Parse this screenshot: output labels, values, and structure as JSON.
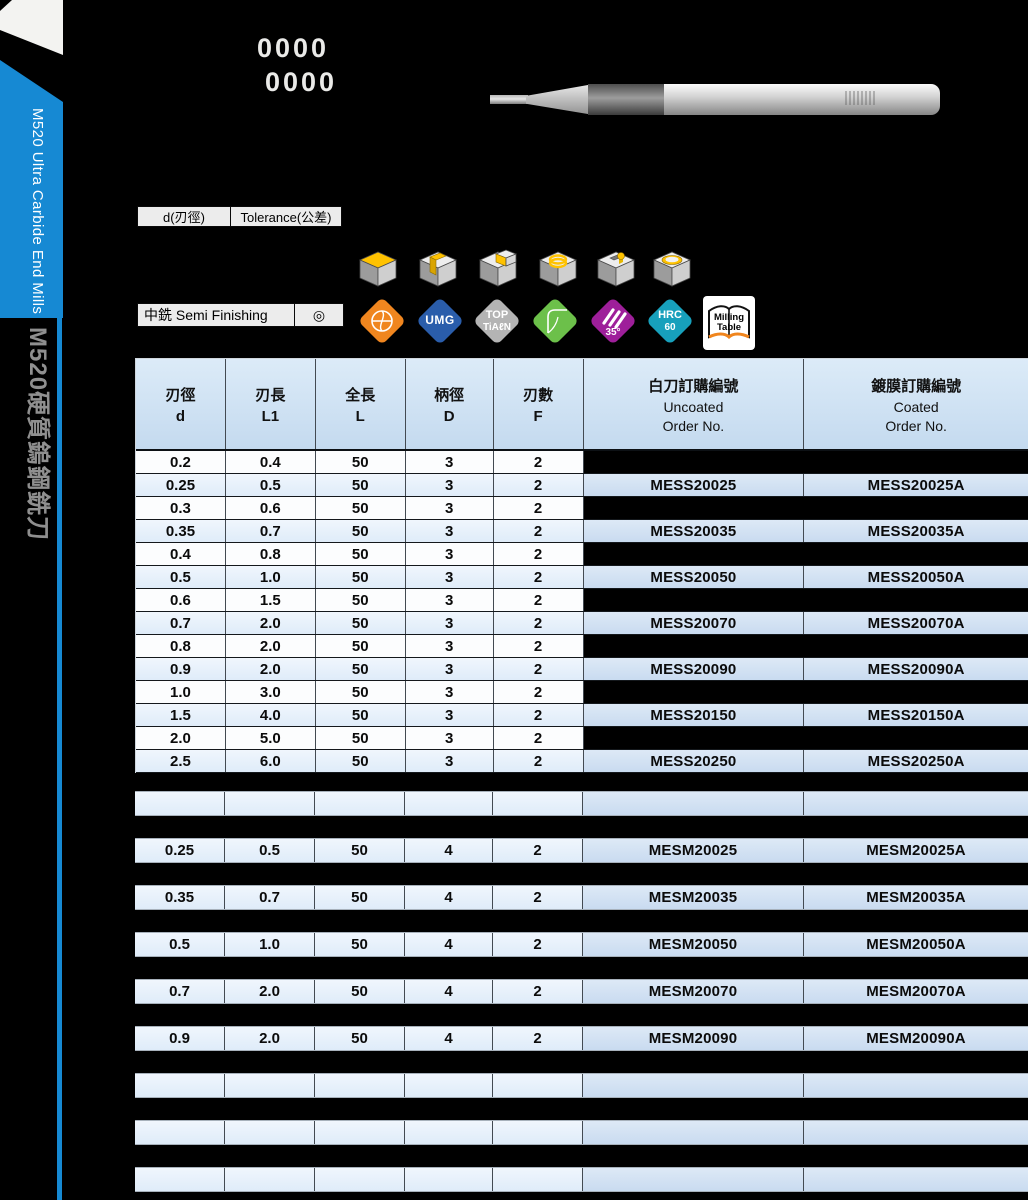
{
  "accent_color": "#1689d3",
  "sidebar": {
    "title_en": "M520 Ultra Carbide End Mills",
    "title_zh": "M520硬質鎢鋼銑刀"
  },
  "header": {
    "code_line1": "0000",
    "code_line2": "0000"
  },
  "spec": {
    "d_label": "d(刃徑)",
    "tolerance_label": "Tolerance(公差)",
    "finish_label": "中銑 Semi Finishing",
    "finish_mark": "◎"
  },
  "milling_ops": [
    "face-milling",
    "slot-milling",
    "step-milling",
    "circular-pocket-milling",
    "plunge-milling",
    "shallow-pocket-milling"
  ],
  "badges": [
    {
      "name": "endmill-tip-badge",
      "color": "#f0861f",
      "line1": "",
      "line2": ""
    },
    {
      "name": "umg-badge",
      "color": "#2a5dab",
      "line1": "UMG",
      "line2": ""
    },
    {
      "name": "top-tialn-badge",
      "color": "#b4b4b4",
      "line1": "TOP",
      "line2": "TiAℓN"
    },
    {
      "name": "corner-profile-badge",
      "color": "#6cc04a",
      "line1": "",
      "line2": ""
    },
    {
      "name": "helix-35-badge",
      "color": "#9e1f9a",
      "line1": "35°",
      "line2": ""
    },
    {
      "name": "hardness-hrc60-badge",
      "color": "#17a0bc",
      "line1": "HRC",
      "line2": "60"
    },
    {
      "name": "milling-table-badge",
      "color": "#f0851d",
      "line1": "Milling",
      "line2": "Table"
    }
  ],
  "table": {
    "headers": [
      {
        "zh": "刃徑",
        "en": "d"
      },
      {
        "zh": "刃長",
        "en": "L1"
      },
      {
        "zh": "全長",
        "en": "L"
      },
      {
        "zh": "柄徑",
        "en": "D"
      },
      {
        "zh": "刃數",
        "en": "F"
      },
      {
        "zh": "白刀訂購編號",
        "en": "Uncoated",
        "en2": "Order No."
      },
      {
        "zh": "鍍膜訂購編號",
        "en": "Coated",
        "en2": "Order No."
      }
    ],
    "section1": [
      {
        "d": "0.2",
        "l1": "0.4",
        "l": "50",
        "sd": "3",
        "f": "2",
        "uncoated": "",
        "coated": "",
        "hidden": true
      },
      {
        "d": "0.25",
        "l1": "0.5",
        "l": "50",
        "sd": "3",
        "f": "2",
        "uncoated": "MESS20025",
        "coated": "MESS20025A"
      },
      {
        "d": "0.3",
        "l1": "0.6",
        "l": "50",
        "sd": "3",
        "f": "2",
        "uncoated": "",
        "coated": "",
        "hidden": true
      },
      {
        "d": "0.35",
        "l1": "0.7",
        "l": "50",
        "sd": "3",
        "f": "2",
        "uncoated": "MESS20035",
        "coated": "MESS20035A"
      },
      {
        "d": "0.4",
        "l1": "0.8",
        "l": "50",
        "sd": "3",
        "f": "2",
        "uncoated": "",
        "coated": "",
        "hidden": true
      },
      {
        "d": "0.5",
        "l1": "1.0",
        "l": "50",
        "sd": "3",
        "f": "2",
        "uncoated": "MESS20050",
        "coated": "MESS20050A"
      },
      {
        "d": "0.6",
        "l1": "1.5",
        "l": "50",
        "sd": "3",
        "f": "2",
        "uncoated": "",
        "coated": "",
        "hidden": true
      },
      {
        "d": "0.7",
        "l1": "2.0",
        "l": "50",
        "sd": "3",
        "f": "2",
        "uncoated": "MESS20070",
        "coated": "MESS20070A"
      },
      {
        "d": "0.8",
        "l1": "2.0",
        "l": "50",
        "sd": "3",
        "f": "2",
        "uncoated": "",
        "coated": "",
        "hidden": true
      },
      {
        "d": "0.9",
        "l1": "2.0",
        "l": "50",
        "sd": "3",
        "f": "2",
        "uncoated": "MESS20090",
        "coated": "MESS20090A"
      },
      {
        "d": "1.0",
        "l1": "3.0",
        "l": "50",
        "sd": "3",
        "f": "2",
        "uncoated": "",
        "coated": "",
        "hidden": true
      },
      {
        "d": "1.5",
        "l1": "4.0",
        "l": "50",
        "sd": "3",
        "f": "2",
        "uncoated": "MESS20150",
        "coated": "MESS20150A"
      },
      {
        "d": "2.0",
        "l1": "5.0",
        "l": "50",
        "sd": "3",
        "f": "2",
        "uncoated": "",
        "coated": "",
        "hidden": true
      },
      {
        "d": "2.5",
        "l1": "6.0",
        "l": "50",
        "sd": "3",
        "f": "2",
        "uncoated": "MESS20250",
        "coated": "MESS20250A"
      }
    ],
    "section2": [
      {
        "empty": true
      },
      {
        "d": "0.25",
        "l1": "0.5",
        "l": "50",
        "sd": "4",
        "f": "2",
        "uncoated": "MESM20025",
        "coated": "MESM20025A"
      },
      {
        "d": "0.35",
        "l1": "0.7",
        "l": "50",
        "sd": "4",
        "f": "2",
        "uncoated": "MESM20035",
        "coated": "MESM20035A"
      },
      {
        "d": "0.5",
        "l1": "1.0",
        "l": "50",
        "sd": "4",
        "f": "2",
        "uncoated": "MESM20050",
        "coated": "MESM20050A"
      },
      {
        "d": "0.7",
        "l1": "2.0",
        "l": "50",
        "sd": "4",
        "f": "2",
        "uncoated": "MESM20070",
        "coated": "MESM20070A"
      },
      {
        "d": "0.9",
        "l1": "2.0",
        "l": "50",
        "sd": "4",
        "f": "2",
        "uncoated": "MESM20090",
        "coated": "MESM20090A"
      },
      {
        "empty": true
      },
      {
        "empty": true
      },
      {
        "empty": true
      }
    ]
  }
}
